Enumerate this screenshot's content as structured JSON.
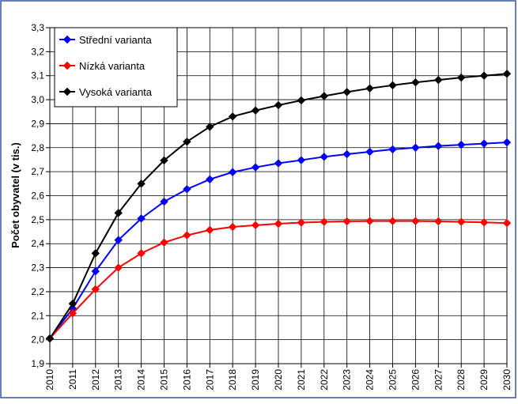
{
  "chart_data": {
    "type": "line",
    "title": "",
    "xlabel": "",
    "ylabel": "Počet obyvatel (v tis.)",
    "x": [
      "2010",
      "2011",
      "2012",
      "2013",
      "2014",
      "2015",
      "2016",
      "2017",
      "2018",
      "2019",
      "2020",
      "2021",
      "2022",
      "2023",
      "2024",
      "2025",
      "2026",
      "2027",
      "2028",
      "2029",
      "2030"
    ],
    "ylim": [
      1.9,
      3.3
    ],
    "yticks": [
      "1,9",
      "2,0",
      "2,1",
      "2,2",
      "2,3",
      "2,4",
      "2,5",
      "2,6",
      "2,7",
      "2,8",
      "2,9",
      "3,0",
      "3,1",
      "3,2",
      "3,3"
    ],
    "grid": true,
    "legend_position": "top-left",
    "series": [
      {
        "name": "Střední varianta",
        "color": "#0000ff",
        "marker": "diamond",
        "values": [
          2.005,
          2.13,
          2.285,
          2.415,
          2.505,
          2.575,
          2.627,
          2.668,
          2.698,
          2.718,
          2.735,
          2.748,
          2.762,
          2.773,
          2.783,
          2.793,
          2.8,
          2.807,
          2.812,
          2.817,
          2.822
        ]
      },
      {
        "name": "Nízká varianta",
        "color": "#ff0000",
        "marker": "diamond",
        "values": [
          2.005,
          2.11,
          2.21,
          2.3,
          2.36,
          2.405,
          2.435,
          2.457,
          2.47,
          2.477,
          2.483,
          2.488,
          2.491,
          2.493,
          2.494,
          2.494,
          2.494,
          2.493,
          2.491,
          2.489,
          2.486
        ]
      },
      {
        "name": "Vysoká varianta",
        "color": "#000000",
        "marker": "diamond",
        "values": [
          2.005,
          2.15,
          2.36,
          2.528,
          2.65,
          2.747,
          2.825,
          2.887,
          2.93,
          2.955,
          2.977,
          2.997,
          3.015,
          3.032,
          3.047,
          3.06,
          3.072,
          3.082,
          3.092,
          3.1,
          3.108
        ]
      }
    ]
  },
  "colors": {
    "frame_border": "#3355aa",
    "grid": "#000000",
    "background": "#ffffff"
  }
}
